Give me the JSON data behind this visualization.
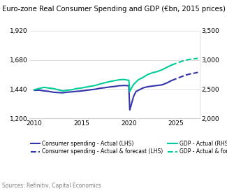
{
  "title": "Euro-zone Real Consumer Spending and GDP (€bn, 2015 prices)",
  "source": "Sources: Refinitiv, Capital Economics",
  "lhs_ylim": [
    1200,
    1920
  ],
  "rhs_ylim": [
    2000,
    3500
  ],
  "lhs_yticks": [
    1200,
    1440,
    1680,
    1920
  ],
  "rhs_yticks": [
    2000,
    2500,
    3000,
    3500
  ],
  "xticks": [
    2010,
    2015,
    2020,
    2025
  ],
  "color_blue": "#3333aa",
  "color_green": "#00cc99",
  "cs_actual_x": [
    2010.0,
    2010.5,
    2011.0,
    2011.5,
    2012.0,
    2012.5,
    2013.0,
    2013.5,
    2014.0,
    2014.5,
    2015.0,
    2015.5,
    2016.0,
    2016.5,
    2017.0,
    2017.5,
    2018.0,
    2018.5,
    2019.0,
    2019.5,
    2020.0,
    2020.1,
    2020.25,
    2020.5,
    2020.75,
    2021.0,
    2021.5,
    2022.0,
    2022.5,
    2023.0,
    2023.5,
    2024.0,
    2024.5
  ],
  "cs_actual_y": [
    1430,
    1432,
    1426,
    1422,
    1415,
    1412,
    1410,
    1415,
    1418,
    1422,
    1425,
    1430,
    1435,
    1440,
    1448,
    1452,
    1458,
    1462,
    1468,
    1470,
    1468,
    1270,
    1310,
    1380,
    1420,
    1430,
    1450,
    1460,
    1465,
    1470,
    1475,
    1490,
    1510
  ],
  "cs_forecast_x": [
    2024.5,
    2025.0,
    2025.5,
    2026.0,
    2026.5,
    2027.0,
    2027.3
  ],
  "cs_forecast_y": [
    1510,
    1525,
    1540,
    1555,
    1565,
    1572,
    1578
  ],
  "gdp_actual_x": [
    2010.0,
    2010.5,
    2011.0,
    2011.5,
    2012.0,
    2012.5,
    2013.0,
    2013.5,
    2014.0,
    2014.5,
    2015.0,
    2015.5,
    2016.0,
    2016.5,
    2017.0,
    2017.5,
    2018.0,
    2018.5,
    2019.0,
    2019.5,
    2020.0,
    2020.1,
    2020.25,
    2020.5,
    2020.75,
    2021.0,
    2021.5,
    2022.0,
    2022.5,
    2023.0,
    2023.5,
    2024.0,
    2024.5
  ],
  "gdp_actual_y": [
    2490,
    2510,
    2530,
    2520,
    2510,
    2490,
    2470,
    2480,
    2490,
    2510,
    2520,
    2535,
    2550,
    2565,
    2590,
    2610,
    2630,
    2645,
    2660,
    2665,
    2650,
    2460,
    2510,
    2580,
    2620,
    2660,
    2700,
    2750,
    2780,
    2800,
    2830,
    2870,
    2910
  ],
  "gdp_forecast_x": [
    2024.5,
    2025.0,
    2025.5,
    2026.0,
    2026.5,
    2027.0,
    2027.3
  ],
  "gdp_forecast_y": [
    2910,
    2940,
    2970,
    2995,
    3010,
    3020,
    3025
  ]
}
